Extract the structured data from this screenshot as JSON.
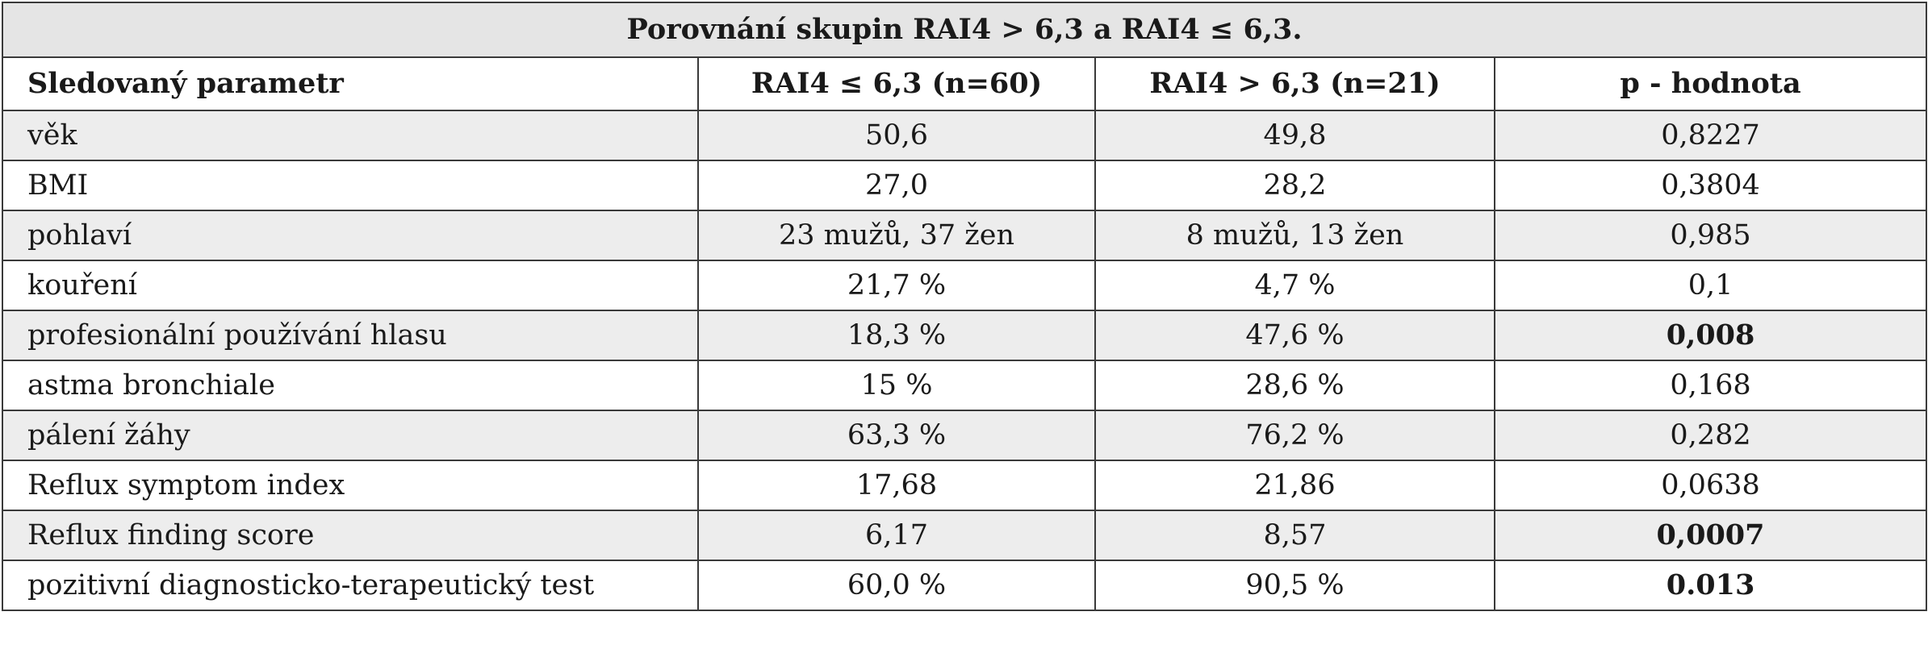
{
  "table": {
    "title": "Porovnání skupin RAI4 > 6,3 a RAI4 ≤ 6,3.",
    "headers": [
      "Sledovaný parametr",
      "RAI4 ≤ 6,3 (n=60)",
      "RAI4 > 6,3 (n=21)",
      "p - hodnota"
    ],
    "rows": [
      {
        "param": "věk",
        "low": "50,6",
        "high": "49,8",
        "p": "0,8227",
        "significant": false
      },
      {
        "param": "BMI",
        "low": "27,0",
        "high": "28,2",
        "p": "0,3804",
        "significant": false
      },
      {
        "param": "pohlaví",
        "low": "23 mužů, 37 žen",
        "high": "8 mužů, 13 žen",
        "p": "0,985",
        "significant": false
      },
      {
        "param": "kouření",
        "low": "21,7 %",
        "high": "4,7 %",
        "p": "0,1",
        "significant": false
      },
      {
        "param": "profesionální používání hlasu",
        "low": "18,3 %",
        "high": "47,6 %",
        "p": "0,008",
        "significant": true
      },
      {
        "param": "astma bronchiale",
        "low": "15 %",
        "high": "28,6 %",
        "p": "0,168",
        "significant": false
      },
      {
        "param": "pálení žáhy",
        "low": "63,3 %",
        "high": "76,2 %",
        "p": "0,282",
        "significant": false
      },
      {
        "param": "Reflux symptom index",
        "low": "17,68",
        "high": "21,86",
        "p": "0,0638",
        "significant": false
      },
      {
        "param": "Reflux finding score",
        "low": "6,17",
        "high": "8,57",
        "p": "0,0007",
        "significant": true
      },
      {
        "param": "pozitivní diagnosticko-terapeutický test",
        "low": "60,0 %",
        "high": "90,5 %",
        "p": "0.013",
        "significant": true
      }
    ]
  }
}
